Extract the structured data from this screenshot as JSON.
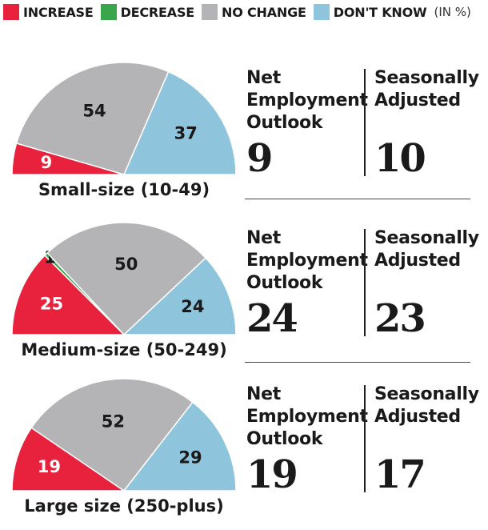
{
  "legend": {
    "items": [
      {
        "label": "INCREASE",
        "color": "#e8213d"
      },
      {
        "label": "DECREASE",
        "color": "#3aa64c"
      },
      {
        "label": "NO CHANGE",
        "color": "#b4b4b6"
      },
      {
        "label": "DON'T KNOW",
        "color": "#8fc5dc"
      }
    ],
    "unit": "(IN %)"
  },
  "stat_labels": {
    "net_line1": "Net",
    "net_line2": "Employment",
    "net_line3": "Outlook",
    "seasonal_line1": "Seasonally",
    "seasonal_line2": "Adjusted"
  },
  "chart_data": [
    {
      "type": "pie",
      "subtype": "semicircle",
      "title": "Small-size (10-49)",
      "categories": [
        "INCREASE",
        "DECREASE",
        "NO CHANGE",
        "DON'T KNOW"
      ],
      "values": [
        9,
        0,
        54,
        37
      ],
      "slice_labels": [
        "9",
        "",
        "54",
        "37"
      ],
      "net_employment_outlook": "9",
      "seasonally_adjusted": "10"
    },
    {
      "type": "pie",
      "subtype": "semicircle",
      "title": "Medium-size (50-249)",
      "categories": [
        "INCREASE",
        "DECREASE",
        "NO CHANGE",
        "DON'T KNOW"
      ],
      "values": [
        25,
        1,
        50,
        24
      ],
      "slice_labels": [
        "25",
        "1",
        "50",
        "24"
      ],
      "net_employment_outlook": "24",
      "seasonally_adjusted": "23"
    },
    {
      "type": "pie",
      "subtype": "semicircle",
      "title": "Large size (250-plus)",
      "categories": [
        "INCREASE",
        "DECREASE",
        "NO CHANGE",
        "DON'T KNOW"
      ],
      "values": [
        19,
        0,
        52,
        29
      ],
      "slice_labels": [
        "19",
        "",
        "52",
        "29"
      ],
      "net_employment_outlook": "19",
      "seasonally_adjusted": "17"
    }
  ]
}
